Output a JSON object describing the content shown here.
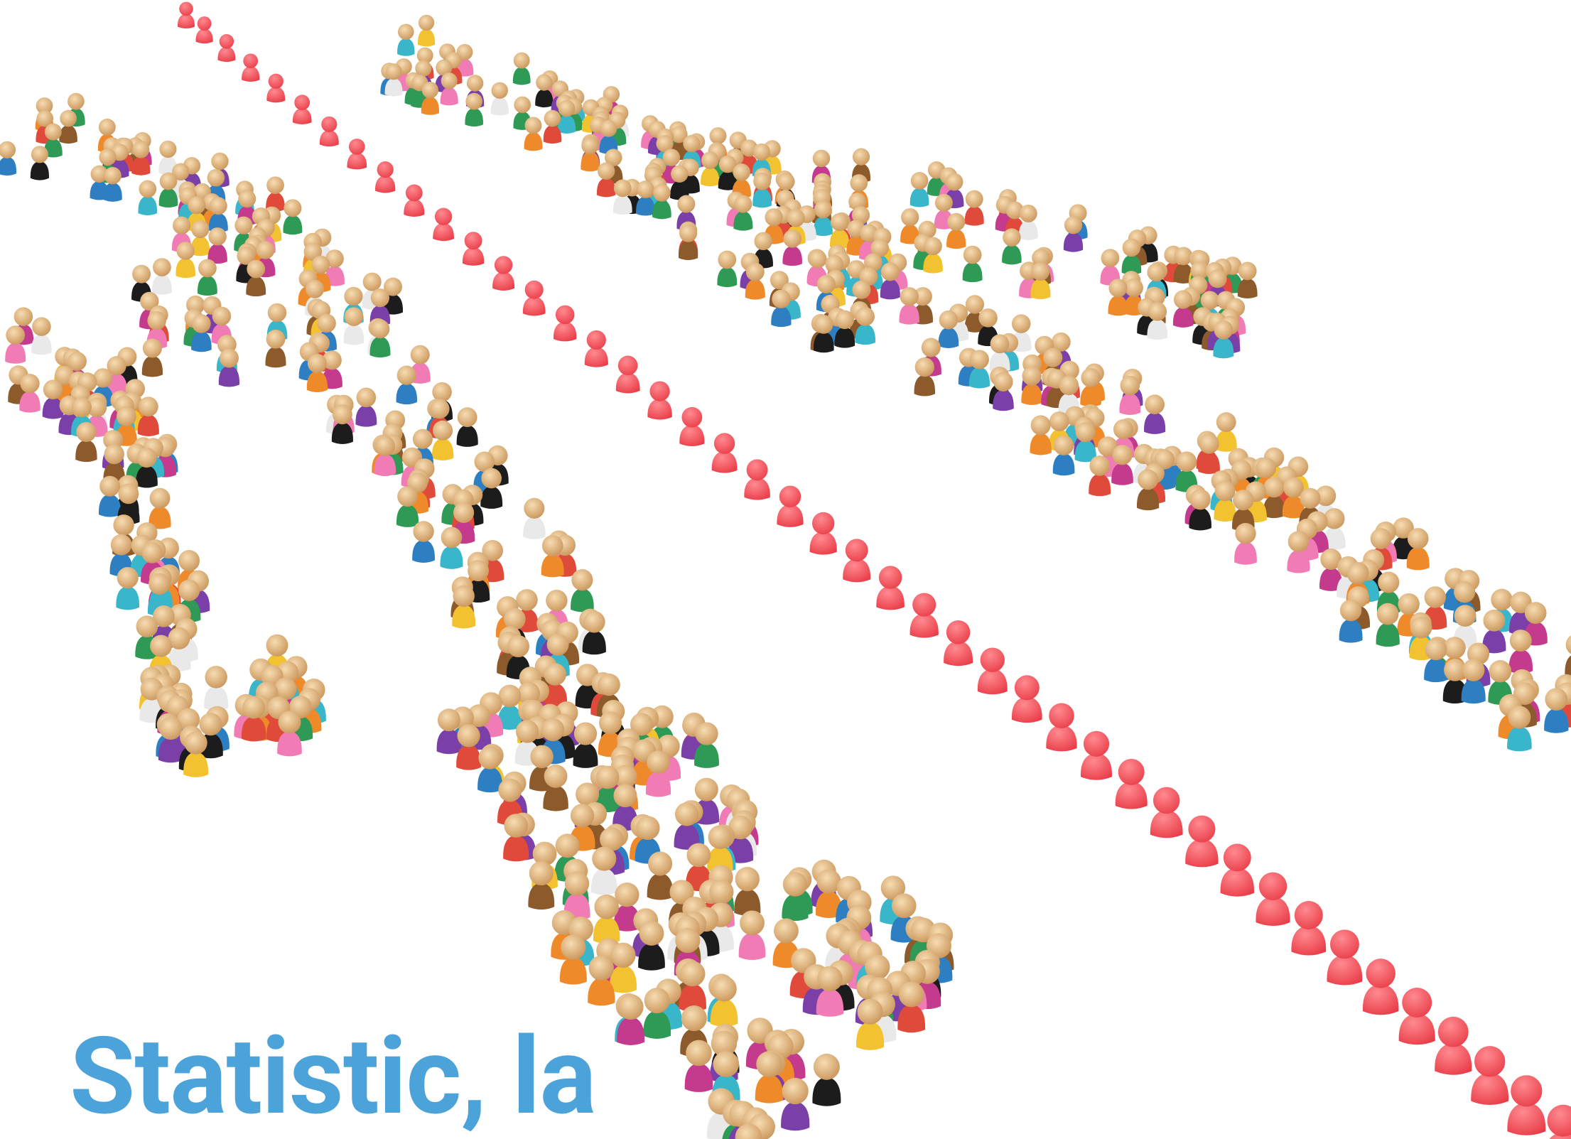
{
  "headline": "Statistic, la"
}
